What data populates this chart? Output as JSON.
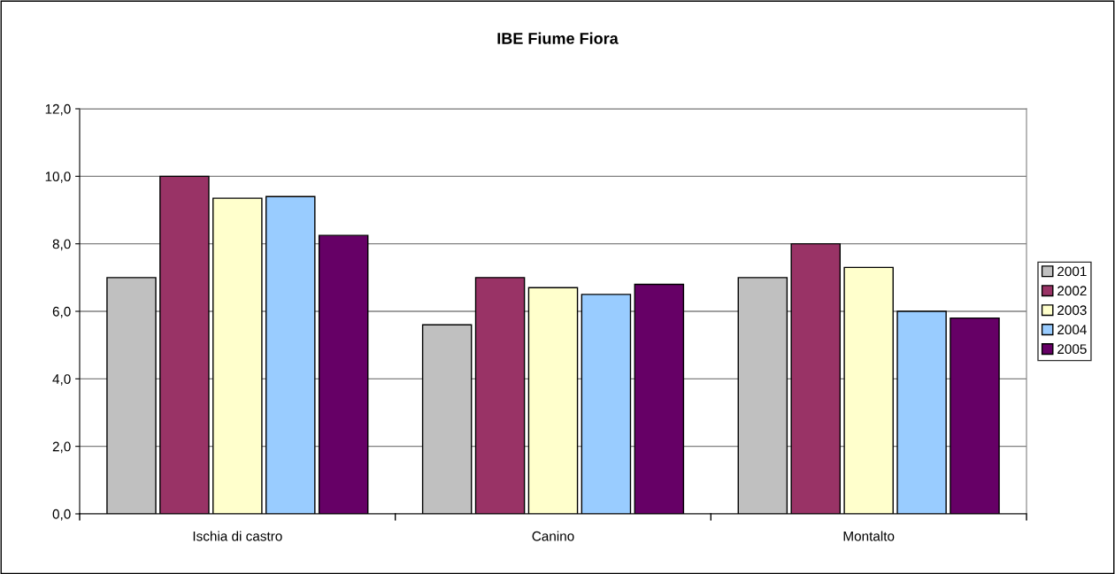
{
  "chart_data": {
    "type": "bar",
    "title": "IBE Fiume Fiora",
    "categories": [
      "Ischia di castro",
      "Canino",
      "Montalto"
    ],
    "series": [
      {
        "name": "2001",
        "color": "#c0c0c0",
        "values": [
          7.0,
          5.6,
          7.0
        ]
      },
      {
        "name": "2002",
        "color": "#993366",
        "values": [
          10.0,
          7.0,
          8.0
        ]
      },
      {
        "name": "2003",
        "color": "#ffffcc",
        "values": [
          9.35,
          6.7,
          7.3
        ]
      },
      {
        "name": "2004",
        "color": "#99ccff",
        "values": [
          9.4,
          6.5,
          6.0
        ]
      },
      {
        "name": "2005",
        "color": "#660066",
        "values": [
          8.25,
          6.8,
          5.8
        ]
      }
    ],
    "ylim": [
      0,
      12
    ],
    "yticks": [
      {
        "value": 0,
        "label": "0,0"
      },
      {
        "value": 2,
        "label": "2,0"
      },
      {
        "value": 4,
        "label": "4,0"
      },
      {
        "value": 6,
        "label": "6,0"
      },
      {
        "value": 8,
        "label": "8,0"
      },
      {
        "value": 10,
        "label": "10,0"
      },
      {
        "value": 12,
        "label": "12,0"
      }
    ],
    "grid": "y",
    "legend": "right"
  }
}
